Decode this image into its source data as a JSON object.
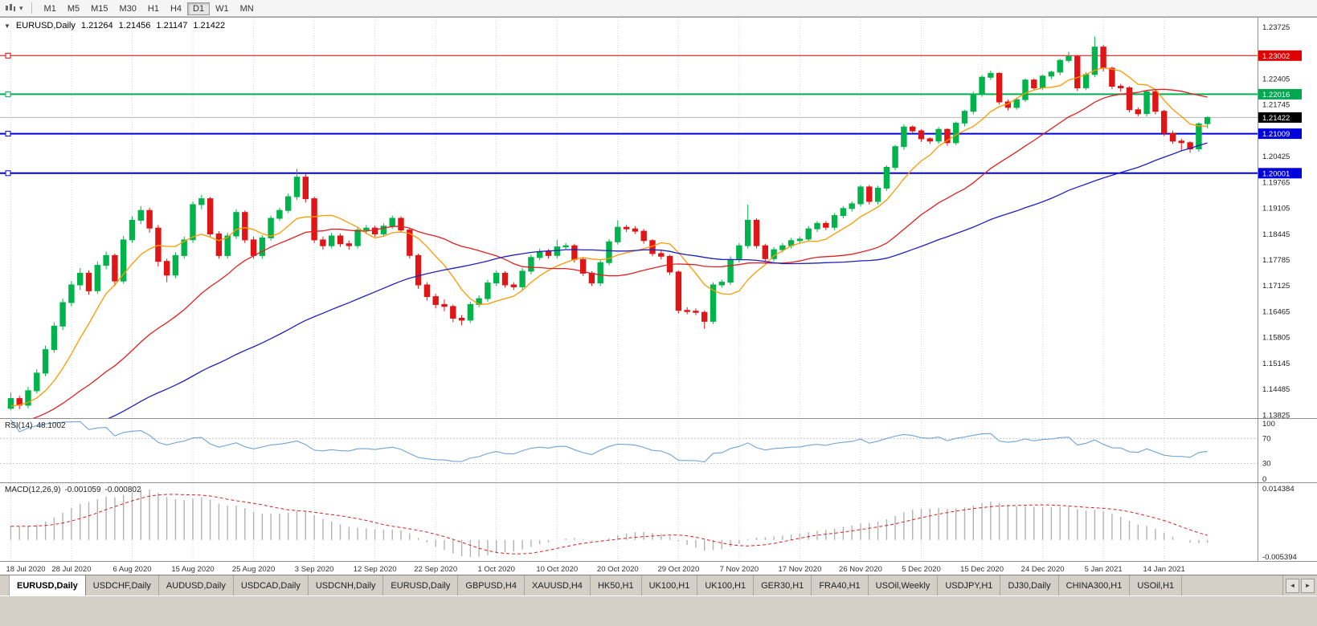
{
  "colors": {
    "up": "#00b34a",
    "down": "#e01515",
    "grid": "#d6d6d6",
    "current_line": "#b4b4b4",
    "rsi_line": "#6fa3d8",
    "macd_hist": "#b2b2b2",
    "macd_signal": "#d42020",
    "badge_current": "#000000"
  },
  "toolbar": {
    "timeframes": [
      "M1",
      "M5",
      "M15",
      "M30",
      "H1",
      "H4",
      "D1",
      "W1",
      "MN"
    ],
    "active_timeframe": "D1",
    "dropdown_icon": "▾"
  },
  "header": {
    "collapse": "▼",
    "symbol": "EURUSD,Daily",
    "open": "1.21264",
    "high": "1.21456",
    "low": "1.21147",
    "close": "1.21422"
  },
  "price_axis": {
    "plain": [
      "1.23725",
      "1.22405",
      "1.21745",
      "1.20425",
      "1.19765",
      "1.19105",
      "1.18445",
      "1.17785",
      "1.17125",
      "1.16465",
      "1.15805",
      "1.15145",
      "1.14485",
      "1.13825"
    ],
    "badges": [
      {
        "text": "1.23002",
        "color": "#e00000"
      },
      {
        "text": "1.22016",
        "color": "#00a650"
      },
      {
        "text": "1.21422",
        "color": "#000000"
      },
      {
        "text": "1.21009",
        "color": "#0000dd"
      },
      {
        "text": "1.20001",
        "color": "#0000dd"
      }
    ]
  },
  "rsi": {
    "label": "RSI(14)",
    "value": "48.1002",
    "axis": [
      "100",
      "70",
      "30",
      "0"
    ],
    "levels": [
      70,
      30
    ]
  },
  "macd": {
    "label": "MACD(12,26,9)",
    "value": "-0.001059",
    "signal_value": "-0.000802",
    "axis_max": "0.014384",
    "axis_min": "-0.005394"
  },
  "dates": {
    "step": 7,
    "labels": [
      "18 Jul 2020",
      "28 Jul 2020",
      "6 Aug 2020",
      "15 Aug 2020",
      "25 Aug 2020",
      "3 Sep 2020",
      "12 Sep 2020",
      "22 Sep 2020",
      "1 Oct 2020",
      "10 Oct 2020",
      "20 Oct 2020",
      "29 Oct 2020",
      "7 Nov 2020",
      "17 Nov 2020",
      "26 Nov 2020",
      "5 Dec 2020",
      "15 Dec 2020",
      "24 Dec 2020",
      "5 Jan 2021",
      "14 Jan 2021"
    ]
  },
  "tabs": {
    "scroll_left": "◄",
    "scroll_right": "►",
    "items": [
      {
        "label": "EURUSD,Daily",
        "active": true
      },
      {
        "label": "USDCHF,Daily",
        "active": false
      },
      {
        "label": "AUDUSD,Daily",
        "active": false
      },
      {
        "label": "USDCAD,Daily",
        "active": false
      },
      {
        "label": "USDCNH,Daily",
        "active": false
      },
      {
        "label": "EURUSD,Daily",
        "active": false
      },
      {
        "label": "GBPUSD,H4",
        "active": false
      },
      {
        "label": "XAUUSD,H4",
        "active": false
      },
      {
        "label": "HK50,H1",
        "active": false
      },
      {
        "label": "UK100,H1",
        "active": false
      },
      {
        "label": "UK100,H1",
        "active": false
      },
      {
        "label": "GER30,H1",
        "active": false
      },
      {
        "label": "FRA40,H1",
        "active": false
      },
      {
        "label": "USOil,Weekly",
        "active": false
      },
      {
        "label": "USDJPY,H1",
        "active": false
      },
      {
        "label": "DJ30,Daily",
        "active": false
      },
      {
        "label": "CHINA300,H1",
        "active": false
      },
      {
        "label": "USOil,H1",
        "active": false
      }
    ]
  },
  "chart_data": {
    "type": "candlestick",
    "symbol": "EURUSD",
    "timeframe": "Daily",
    "price_range": [
      1.1375,
      1.2395
    ],
    "right_gap_slots": 5,
    "current_price": 1.21422,
    "hlines": [
      {
        "price": 1.23002,
        "color": "#e00000",
        "width": 1
      },
      {
        "price": 1.22016,
        "color": "#00b050",
        "width": 2
      },
      {
        "price": 1.21009,
        "color": "#0000dd",
        "width": 2
      },
      {
        "price": 1.20001,
        "color": "#0000dd",
        "width": 2
      }
    ],
    "moving_averages": [
      {
        "period": 8,
        "color": "#ff9900"
      },
      {
        "period": 25,
        "color": "#e02020"
      },
      {
        "period": 55,
        "color": "#2020c0"
      }
    ],
    "rsi_period": 14,
    "macd_params": {
      "fast": 12,
      "slow": 26,
      "signal": 9
    },
    "macd_range": [
      -0.005394,
      0.014384
    ],
    "ohlc": [
      [
        1.14,
        1.144,
        1.1395,
        1.1425
      ],
      [
        1.1425,
        1.1432,
        1.1398,
        1.1408
      ],
      [
        1.1408,
        1.1455,
        1.14,
        1.1445
      ],
      [
        1.1445,
        1.15,
        1.1438,
        1.149
      ],
      [
        1.149,
        1.156,
        1.1482,
        1.155
      ],
      [
        1.155,
        1.162,
        1.1542,
        1.161
      ],
      [
        1.161,
        1.168,
        1.16,
        1.167
      ],
      [
        1.167,
        1.1725,
        1.166,
        1.1715
      ],
      [
        1.1715,
        1.1758,
        1.1702,
        1.1745
      ],
      [
        1.1745,
        1.1752,
        1.169,
        1.17
      ],
      [
        1.17,
        1.1775,
        1.1692,
        1.1765
      ],
      [
        1.1765,
        1.18,
        1.1755,
        1.179
      ],
      [
        1.179,
        1.1795,
        1.1712,
        1.1725
      ],
      [
        1.1725,
        1.184,
        1.1718,
        1.183
      ],
      [
        1.183,
        1.189,
        1.1822,
        1.188
      ],
      [
        1.188,
        1.1916,
        1.187,
        1.1905
      ],
      [
        1.1905,
        1.1912,
        1.1848,
        1.186
      ],
      [
        1.186,
        1.1868,
        1.1762,
        1.1775
      ],
      [
        1.1775,
        1.1782,
        1.1722,
        1.174
      ],
      [
        1.174,
        1.1798,
        1.1732,
        1.179
      ],
      [
        1.179,
        1.1838,
        1.1782,
        1.183
      ],
      [
        1.183,
        1.1928,
        1.1822,
        1.192
      ],
      [
        1.192,
        1.1945,
        1.1908,
        1.1935
      ],
      [
        1.1935,
        1.194,
        1.1838,
        1.1845
      ],
      [
        1.1845,
        1.1852,
        1.1782,
        1.179
      ],
      [
        1.179,
        1.1848,
        1.1782,
        1.184
      ],
      [
        1.184,
        1.1908,
        1.1832,
        1.19
      ],
      [
        1.19,
        1.1905,
        1.1822,
        1.183
      ],
      [
        1.183,
        1.1838,
        1.1782,
        1.179
      ],
      [
        1.179,
        1.1842,
        1.1782,
        1.1835
      ],
      [
        1.1835,
        1.1892,
        1.1828,
        1.1885
      ],
      [
        1.1885,
        1.1912,
        1.1878,
        1.1905
      ],
      [
        1.1905,
        1.1948,
        1.1898,
        1.194
      ],
      [
        1.194,
        1.2011,
        1.1932,
        1.199
      ],
      [
        1.199,
        1.1998,
        1.1925,
        1.1935
      ],
      [
        1.1935,
        1.194,
        1.1822,
        1.183
      ],
      [
        1.183,
        1.1838,
        1.1805,
        1.1815
      ],
      [
        1.1815,
        1.1848,
        1.1808,
        1.184
      ],
      [
        1.184,
        1.1846,
        1.1812,
        1.182
      ],
      [
        1.182,
        1.1828,
        1.1805,
        1.1815
      ],
      [
        1.1815,
        1.1862,
        1.1808,
        1.1855
      ],
      [
        1.1855,
        1.1868,
        1.1845,
        1.186
      ],
      [
        1.186,
        1.1866,
        1.1838,
        1.1845
      ],
      [
        1.1845,
        1.1872,
        1.1838,
        1.1865
      ],
      [
        1.1865,
        1.1892,
        1.1858,
        1.1885
      ],
      [
        1.1885,
        1.189,
        1.1848,
        1.1855
      ],
      [
        1.1855,
        1.186,
        1.1782,
        1.179
      ],
      [
        1.179,
        1.1795,
        1.1705,
        1.1715
      ],
      [
        1.1715,
        1.1722,
        1.1675,
        1.1685
      ],
      [
        1.1685,
        1.1692,
        1.1655,
        1.1665
      ],
      [
        1.1665,
        1.1678,
        1.1648,
        1.166
      ],
      [
        1.166,
        1.1665,
        1.162,
        1.163
      ],
      [
        1.163,
        1.1638,
        1.1612,
        1.1625
      ],
      [
        1.1625,
        1.1672,
        1.1618,
        1.1665
      ],
      [
        1.1665,
        1.1688,
        1.1658,
        1.168
      ],
      [
        1.168,
        1.1728,
        1.1672,
        1.172
      ],
      [
        1.172,
        1.1752,
        1.1712,
        1.1745
      ],
      [
        1.1745,
        1.175,
        1.1708,
        1.1715
      ],
      [
        1.1715,
        1.1722,
        1.1702,
        1.171
      ],
      [
        1.171,
        1.1758,
        1.1702,
        1.175
      ],
      [
        1.175,
        1.1792,
        1.1742,
        1.1785
      ],
      [
        1.1785,
        1.1808,
        1.1778,
        1.18
      ],
      [
        1.18,
        1.1806,
        1.1782,
        1.179
      ],
      [
        1.179,
        1.183,
        1.1782,
        1.1812
      ],
      [
        1.1812,
        1.1822,
        1.1805,
        1.1815
      ],
      [
        1.1815,
        1.182,
        1.1772,
        1.178
      ],
      [
        1.178,
        1.1786,
        1.1738,
        1.1745
      ],
      [
        1.1745,
        1.175,
        1.1712,
        1.172
      ],
      [
        1.172,
        1.1778,
        1.1712,
        1.1772
      ],
      [
        1.1772,
        1.1832,
        1.1765,
        1.1825
      ],
      [
        1.1825,
        1.188,
        1.1818,
        1.1862
      ],
      [
        1.1862,
        1.1868,
        1.185,
        1.1858
      ],
      [
        1.1858,
        1.1865,
        1.1845,
        1.1852
      ],
      [
        1.1852,
        1.1858,
        1.182,
        1.1828
      ],
      [
        1.1828,
        1.1832,
        1.1788,
        1.1795
      ],
      [
        1.1795,
        1.1802,
        1.178,
        1.1788
      ],
      [
        1.1788,
        1.1792,
        1.174,
        1.1748
      ],
      [
        1.1748,
        1.1752,
        1.1642,
        1.165
      ],
      [
        1.165,
        1.1658,
        1.164,
        1.1648
      ],
      [
        1.1648,
        1.1655,
        1.1638,
        1.1645
      ],
      [
        1.1645,
        1.165,
        1.1603,
        1.1622
      ],
      [
        1.1622,
        1.1722,
        1.1615,
        1.1715
      ],
      [
        1.1715,
        1.1728,
        1.1708,
        1.1722
      ],
      [
        1.1722,
        1.1788,
        1.1715,
        1.178
      ],
      [
        1.178,
        1.1822,
        1.1772,
        1.1815
      ],
      [
        1.1815,
        1.192,
        1.1808,
        1.188
      ],
      [
        1.188,
        1.1885,
        1.1808,
        1.1815
      ],
      [
        1.1815,
        1.182,
        1.1775,
        1.1782
      ],
      [
        1.1782,
        1.1812,
        1.1775,
        1.1805
      ],
      [
        1.1805,
        1.1822,
        1.1798,
        1.1815
      ],
      [
        1.1815,
        1.1835,
        1.1808,
        1.1828
      ],
      [
        1.1828,
        1.1838,
        1.182,
        1.1832
      ],
      [
        1.1832,
        1.1865,
        1.1825,
        1.1858
      ],
      [
        1.1858,
        1.1878,
        1.185,
        1.1872
      ],
      [
        1.1872,
        1.1878,
        1.1855,
        1.1862
      ],
      [
        1.1862,
        1.1898,
        1.1855,
        1.1892
      ],
      [
        1.1892,
        1.1916,
        1.1885,
        1.191
      ],
      [
        1.191,
        1.1928,
        1.1902,
        1.1922
      ],
      [
        1.1922,
        1.197,
        1.1915,
        1.1965
      ],
      [
        1.1965,
        1.197,
        1.192,
        1.1928
      ],
      [
        1.1928,
        1.1968,
        1.192,
        1.1962
      ],
      [
        1.1962,
        1.202,
        1.1955,
        1.2015
      ],
      [
        1.2015,
        1.2072,
        1.2008,
        1.2068
      ],
      [
        1.2068,
        1.2125,
        1.206,
        1.2118
      ],
      [
        1.2118,
        1.2122,
        1.21,
        1.2108
      ],
      [
        1.2108,
        1.2112,
        1.208,
        1.2088
      ],
      [
        1.2088,
        1.2092,
        1.2075,
        1.2082
      ],
      [
        1.2082,
        1.2118,
        1.2075,
        1.2112
      ],
      [
        1.2112,
        1.2115,
        1.207,
        1.2078
      ],
      [
        1.2078,
        1.2132,
        1.2072,
        1.2128
      ],
      [
        1.2128,
        1.2162,
        1.212,
        1.2158
      ],
      [
        1.2158,
        1.2208,
        1.215,
        1.2202
      ],
      [
        1.2202,
        1.225,
        1.2195,
        1.2245
      ],
      [
        1.2245,
        1.2262,
        1.2238,
        1.2255
      ],
      [
        1.2255,
        1.2258,
        1.2175,
        1.2182
      ],
      [
        1.2182,
        1.2188,
        1.216,
        1.2168
      ],
      [
        1.2168,
        1.2192,
        1.2162,
        1.2188
      ],
      [
        1.2188,
        1.2242,
        1.2182,
        1.2238
      ],
      [
        1.2238,
        1.2242,
        1.2212,
        1.2218
      ],
      [
        1.2218,
        1.2252,
        1.2212,
        1.2248
      ],
      [
        1.2248,
        1.2262,
        1.224,
        1.2258
      ],
      [
        1.2258,
        1.2292,
        1.225,
        1.2288
      ],
      [
        1.2288,
        1.231,
        1.2282,
        1.2298
      ],
      [
        1.2298,
        1.2302,
        1.221,
        1.2218
      ],
      [
        1.2218,
        1.2258,
        1.2212,
        1.2252
      ],
      [
        1.2252,
        1.2349,
        1.2245,
        1.2322
      ],
      [
        1.2322,
        1.2328,
        1.226,
        1.2268
      ],
      [
        1.2268,
        1.2272,
        1.2215,
        1.2222
      ],
      [
        1.2222,
        1.2228,
        1.2208,
        1.2218
      ],
      [
        1.2218,
        1.2222,
        1.2155,
        1.2162
      ],
      [
        1.2162,
        1.2168,
        1.2145,
        1.2152
      ],
      [
        1.2152,
        1.2212,
        1.2145,
        1.2208
      ],
      [
        1.2208,
        1.2212,
        1.215,
        1.2158
      ],
      [
        1.2158,
        1.2162,
        1.2095,
        1.2102
      ],
      [
        1.2102,
        1.2108,
        1.2075,
        1.2082
      ],
      [
        1.2082,
        1.2088,
        1.2058,
        1.2078
      ],
      [
        1.2078,
        1.2082,
        1.2052,
        1.2062
      ],
      [
        1.2062,
        1.213,
        1.2055,
        1.2126
      ],
      [
        1.21264,
        1.21456,
        1.21147,
        1.21422
      ]
    ]
  }
}
